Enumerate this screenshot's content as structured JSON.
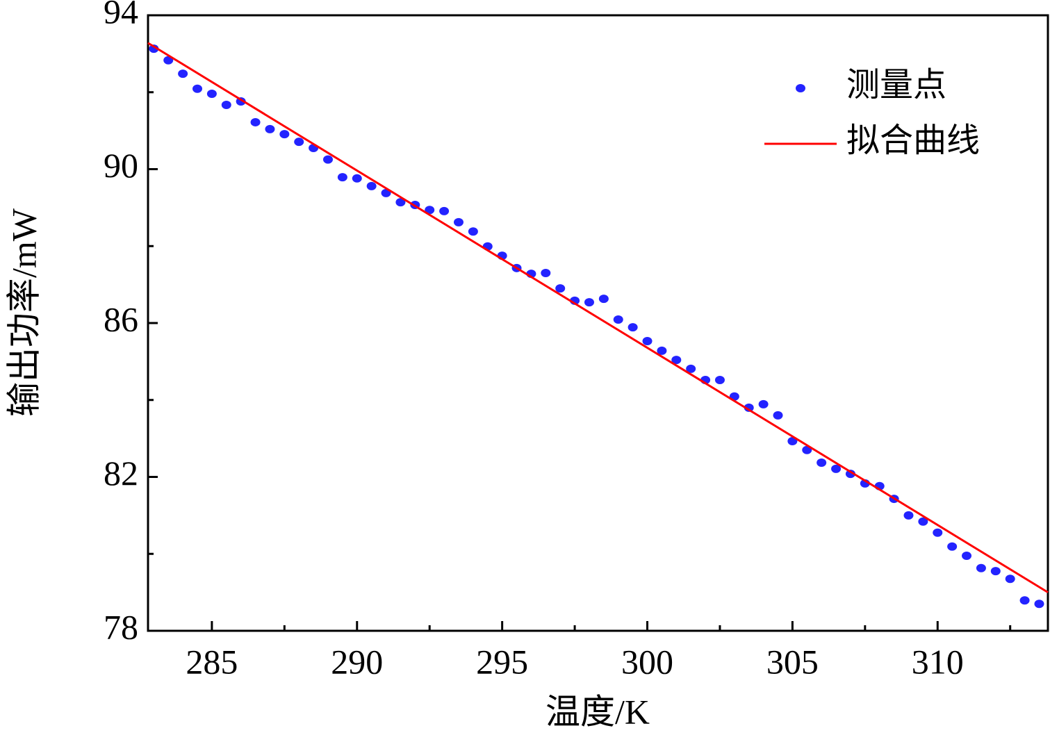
{
  "chart_data": {
    "type": "scatter",
    "x_label": "温度/K",
    "y_label": "输出功率/mW",
    "xlim": [
      282.8,
      313.8
    ],
    "ylim": [
      78,
      94
    ],
    "xticks": [
      285,
      290,
      295,
      300,
      305,
      310
    ],
    "xminor_ticks": [
      287.5,
      292.5,
      297.5,
      302.5,
      307.5,
      312.5
    ],
    "yticks": [
      78,
      82,
      86,
      90,
      94
    ],
    "yminor_ticks": [
      80,
      84,
      88,
      92
    ],
    "legend": "upper right",
    "series": [
      {
        "name": "测量点",
        "color": "#2323ff",
        "mode": "markers",
        "x": [
          283,
          283.5,
          284,
          284.5,
          285,
          285.5,
          286,
          286.5,
          287,
          287.5,
          288,
          288.5,
          289,
          289.5,
          290,
          290.5,
          291,
          291.5,
          292,
          292.5,
          293,
          293.5,
          294,
          294.5,
          295,
          295.5,
          296,
          296.5,
          297,
          297.5,
          298,
          298.5,
          299,
          299.5,
          300,
          300.5,
          301,
          301.5,
          302,
          302.5,
          303,
          303.5,
          304,
          304.5,
          305,
          305.5,
          306,
          306.5,
          307,
          307.5,
          308,
          308.5,
          309,
          309.5,
          310,
          310.5,
          311,
          311.5,
          312,
          312.5,
          313,
          313.5
        ],
        "values": [
          93.13,
          92.83,
          92.48,
          92.09,
          91.96,
          91.67,
          91.76,
          91.22,
          91.04,
          90.91,
          90.71,
          90.55,
          90.25,
          89.79,
          89.76,
          89.56,
          89.38,
          89.14,
          89.07,
          88.94,
          88.91,
          88.62,
          88.38,
          87.99,
          87.75,
          87.43,
          87.28,
          87.3,
          86.9,
          86.58,
          86.54,
          86.63,
          86.09,
          85.89,
          85.53,
          85.28,
          85.04,
          84.81,
          84.52,
          84.52,
          84.09,
          83.8,
          83.89,
          83.6,
          82.93,
          82.7,
          82.37,
          82.21,
          82.08,
          81.83,
          81.76,
          81.43,
          81.0,
          80.84,
          80.55,
          80.19,
          79.95,
          79.63,
          79.55,
          79.35,
          78.79,
          78.7
        ]
      },
      {
        "name": "拟合曲线",
        "color": "#ff0000",
        "mode": "line",
        "x": [
          282.8,
          313.8
        ],
        "values": [
          93.28,
          79.0
        ]
      }
    ]
  }
}
